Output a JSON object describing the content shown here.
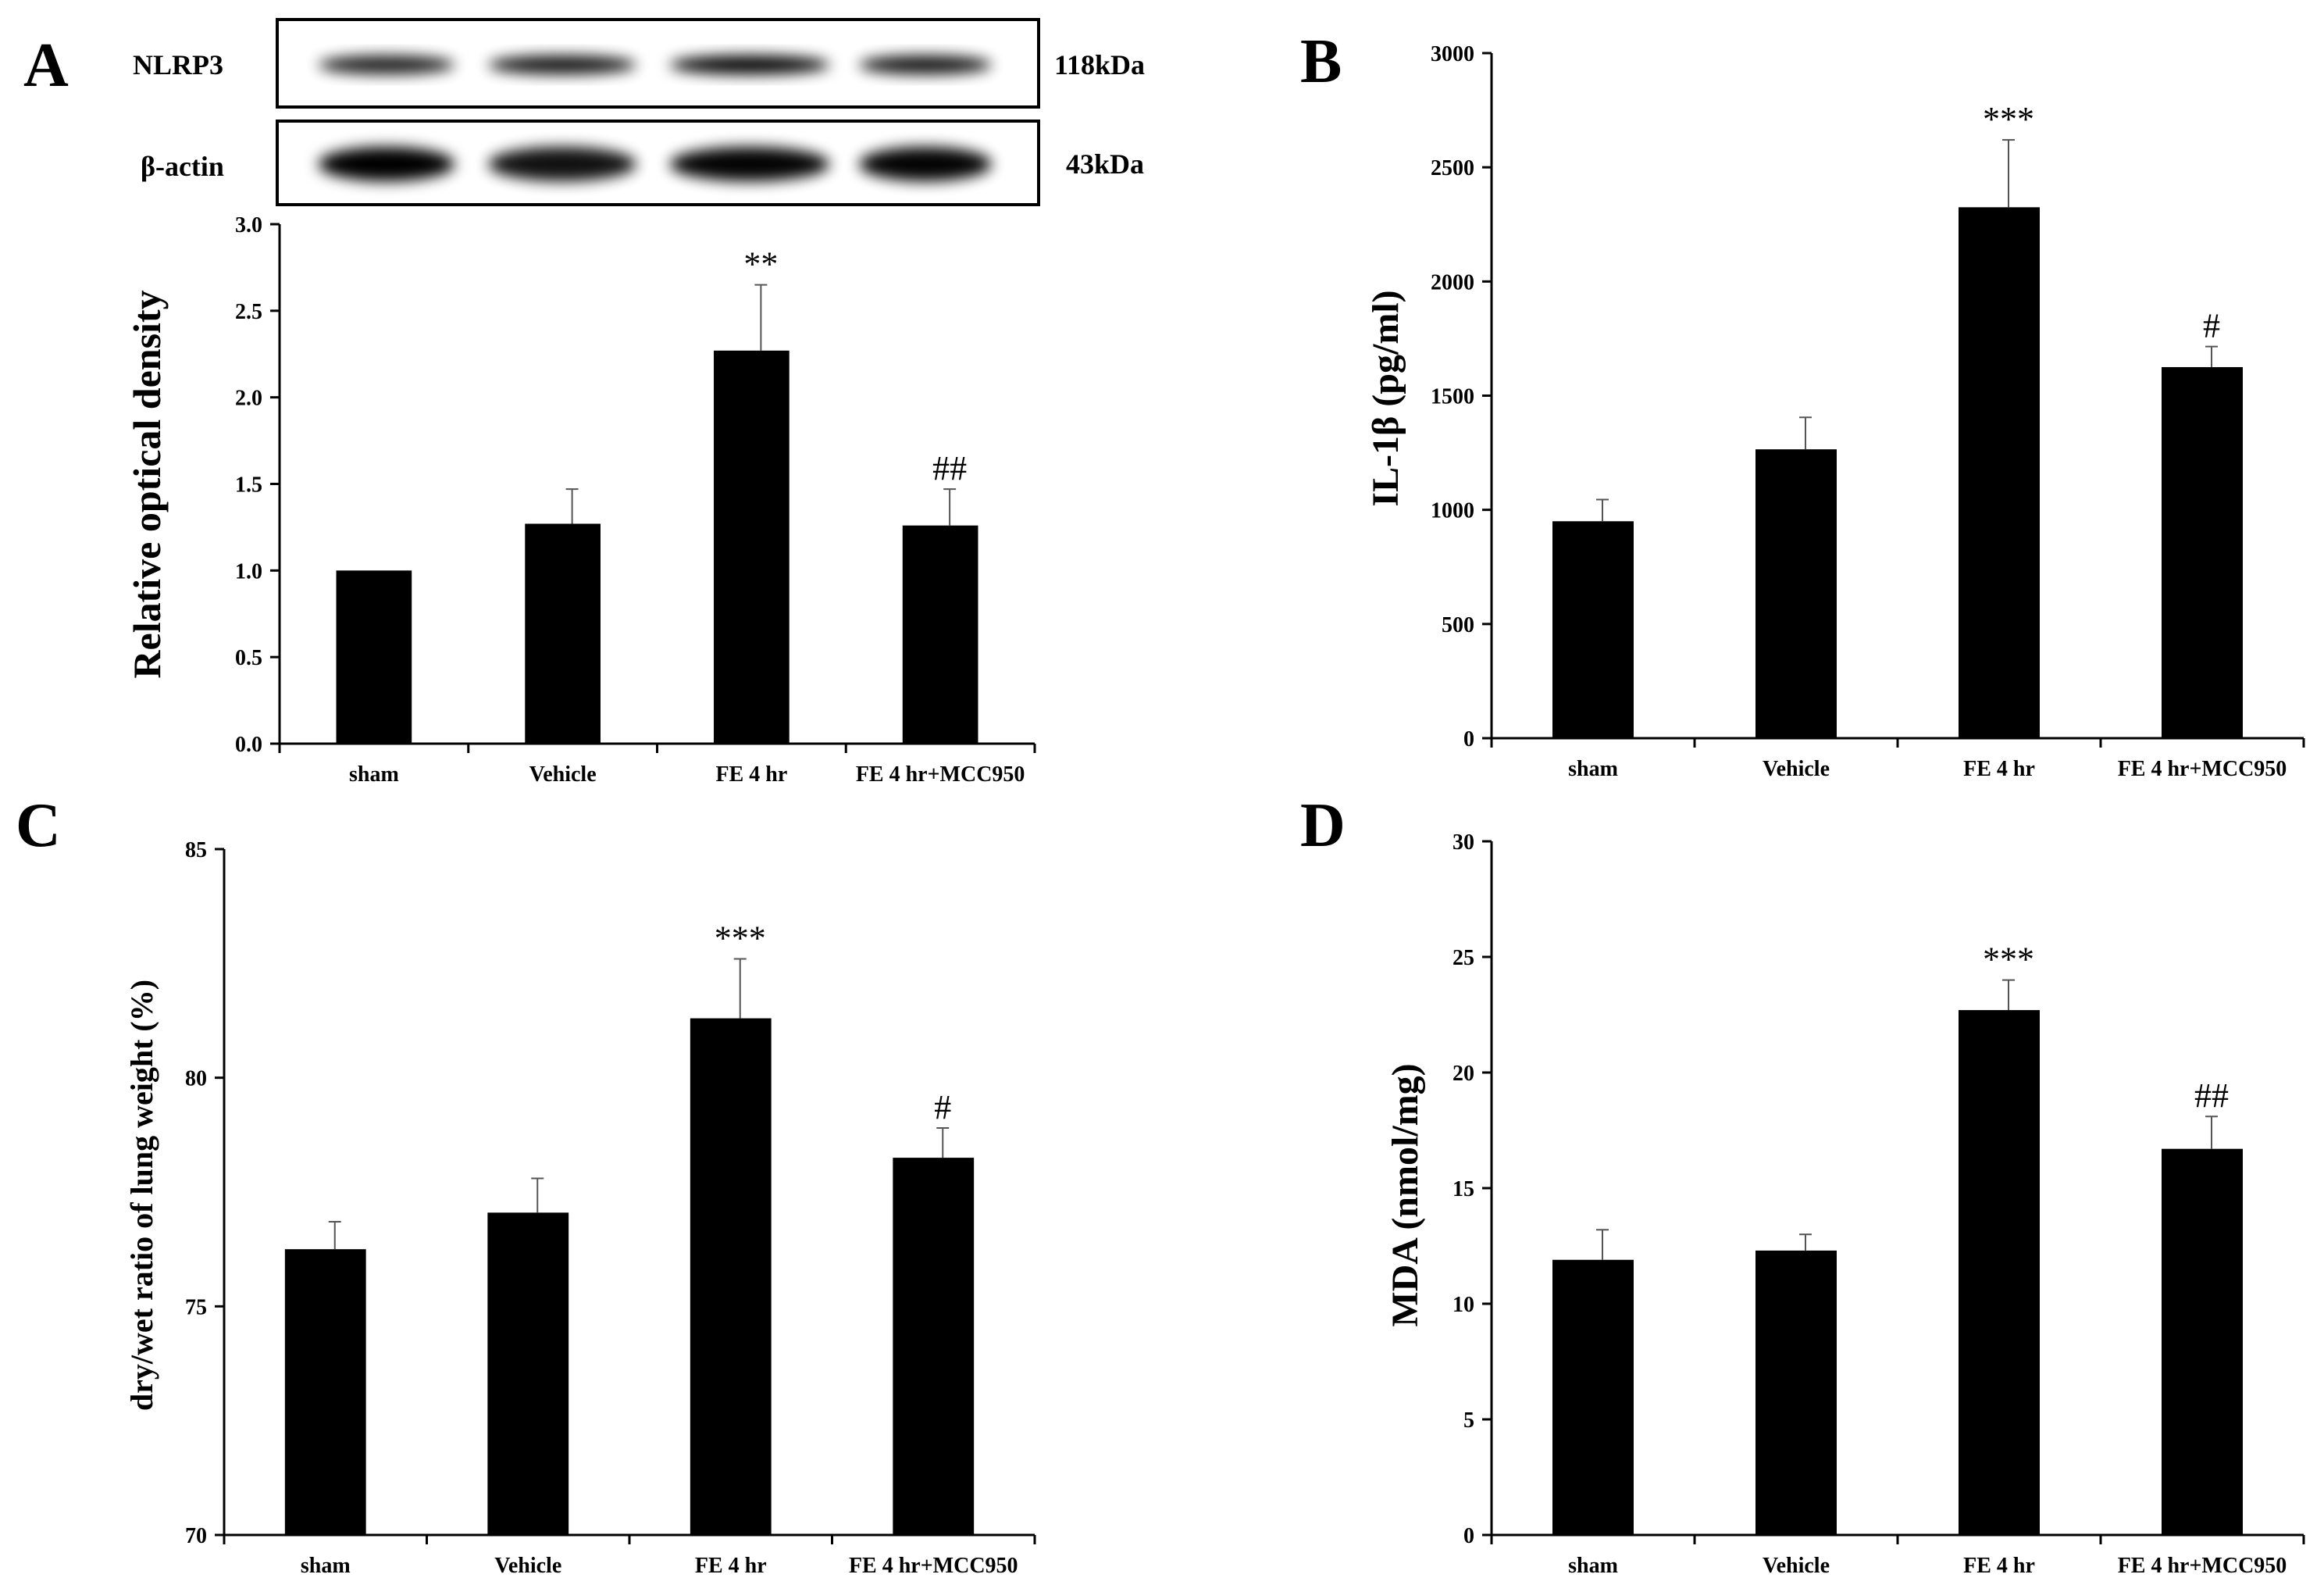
{
  "blot": {
    "rows": [
      {
        "protein": "NLRP3",
        "size": "118kDa",
        "bands": [
          0.75,
          0.85,
          1.0,
          0.85
        ]
      },
      {
        "protein": "β-actin",
        "size": "43kDa",
        "bands": [
          1.0,
          0.85,
          0.95,
          0.95
        ]
      }
    ]
  },
  "chart_data": [
    {
      "panel": "A",
      "type": "bar",
      "categories": [
        "sham",
        "Vehicle",
        "FE 4 hr",
        "FE 4 hr+MCC950"
      ],
      "values": [
        1.0,
        1.27,
        2.27,
        1.26
      ],
      "errors": [
        0,
        0.2,
        0.38,
        0.21
      ],
      "significance": [
        "",
        "",
        "**",
        "##"
      ],
      "ylabel": "Relative optical density",
      "ylim": [
        0,
        3.0
      ],
      "yticks": [
        "0.0",
        "0.5",
        "1.0",
        "1.5",
        "2.0",
        "2.5",
        "3.0"
      ]
    },
    {
      "panel": "B",
      "type": "bar",
      "categories": [
        "sham",
        "Vehicle",
        "FE 4 hr",
        "FE 4 hr+MCC950"
      ],
      "values": [
        950,
        1265,
        2325,
        1625
      ],
      "errors": [
        95,
        140,
        295,
        90
      ],
      "significance": [
        "",
        "",
        "***",
        "#"
      ],
      "ylabel": "IL-1β (pg/ml)",
      "ylim": [
        0,
        3000
      ],
      "yticks": [
        "0",
        "500",
        "1000",
        "1500",
        "2000",
        "2500",
        "3000"
      ]
    },
    {
      "panel": "C",
      "type": "bar",
      "categories": [
        "sham",
        "Vehicle",
        "FE 4 hr",
        "FE 4 hr+MCC950"
      ],
      "values": [
        76.25,
        77.05,
        81.3,
        78.25
      ],
      "errors": [
        0.6,
        0.75,
        1.3,
        0.65
      ],
      "significance": [
        "",
        "",
        "***",
        "#"
      ],
      "ylabel": "dry/wet ratio of lung weight (%)",
      "ylim": [
        70,
        85
      ],
      "yticks": [
        "70",
        "75",
        "80",
        "85"
      ]
    },
    {
      "panel": "D",
      "type": "bar",
      "categories": [
        "sham",
        "Vehicle",
        "FE 4 hr",
        "FE 4 hr+MCC950"
      ],
      "values": [
        11.9,
        12.3,
        22.7,
        16.7
      ],
      "errors": [
        1.3,
        0.7,
        1.3,
        1.4
      ],
      "significance": [
        "",
        "",
        "***",
        "##"
      ],
      "ylabel": "MDA (nmol/mg)",
      "ylim": [
        0,
        30
      ],
      "yticks": [
        "0",
        "5",
        "10",
        "15",
        "20",
        "25",
        "30"
      ]
    }
  ]
}
